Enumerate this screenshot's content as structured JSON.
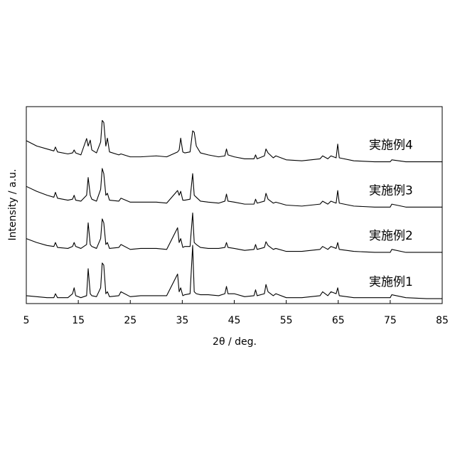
{
  "chart_data": {
    "type": "line",
    "x_label": "2θ / deg.",
    "y_label": "Intensity / a.u.",
    "x": [
      5,
      7,
      9,
      10.3,
      10.6,
      11,
      13,
      13.9,
      14.2,
      14.5,
      15.5,
      16.6,
      16.9,
      17.3,
      17.6,
      18.5,
      19.3,
      19.6,
      19.9,
      20.3,
      20.6,
      21,
      22.8,
      23.2,
      25,
      27,
      30,
      32,
      34.1,
      34.4,
      34.7,
      35.1,
      35.5,
      36.5,
      37.0,
      37.3,
      37.7,
      38.5,
      40,
      42,
      43.2,
      43.5,
      43.8,
      45,
      47,
      48.8,
      49.1,
      49.4,
      50.8,
      51.1,
      51.5,
      52.5,
      53,
      55,
      58,
      61.5,
      62,
      63,
      63.6,
      64.6,
      64.9,
      65.2,
      68,
      72,
      75,
      75.3,
      78,
      82,
      85
    ],
    "series": [
      {
        "name": "実施例1",
        "color": "#000000",
        "values": [
          4,
          3.5,
          3,
          3,
          5,
          3,
          3,
          5,
          8,
          4,
          3,
          4,
          17.7,
          5,
          4,
          3.5,
          8,
          20.6,
          19.5,
          5,
          6,
          3.5,
          4,
          6,
          3.5,
          4,
          4,
          4,
          15,
          6,
          8,
          4,
          4.5,
          5,
          29.6,
          6,
          5,
          4.5,
          4.5,
          4,
          5,
          8.7,
          5,
          5,
          3.5,
          4,
          7,
          4,
          5,
          9.7,
          6,
          4,
          5,
          3,
          3,
          4,
          6,
          4,
          6,
          5,
          8,
          4,
          3,
          3,
          3,
          4.5,
          3,
          2.5,
          2.5
        ]
      },
      {
        "name": "実施例2",
        "color": "#000000",
        "values": [
          33,
          31,
          29.5,
          29,
          31,
          28.5,
          28,
          29,
          31,
          29,
          28,
          30,
          41,
          30,
          29,
          28,
          33,
          43,
          41,
          30,
          31,
          28,
          28.5,
          30,
          27.5,
          28,
          28,
          27.5,
          38.5,
          31,
          33,
          28.5,
          29,
          29,
          46,
          31,
          30,
          28.5,
          28,
          28,
          28.5,
          31,
          28.5,
          28,
          27,
          27.5,
          30,
          27.5,
          28.5,
          31.4,
          29.5,
          27.5,
          28,
          26.5,
          26.5,
          27.5,
          29,
          27.5,
          29,
          28,
          31,
          27.5,
          26.5,
          26,
          26,
          27.5,
          26,
          26,
          26
        ]
      },
      {
        "name": "実施例3",
        "color": "#000000",
        "values": [
          59.5,
          57,
          55,
          54,
          56.5,
          53.5,
          52.5,
          53,
          55,
          52.5,
          52,
          55,
          64,
          55,
          53,
          52,
          58,
          68.6,
          66,
          55,
          56,
          52.5,
          52,
          53.5,
          51.5,
          51.5,
          51.5,
          51,
          57.4,
          55,
          57,
          52.5,
          52.5,
          53,
          66,
          55,
          54,
          52,
          51.5,
          51,
          52,
          55.6,
          52,
          51.5,
          50.5,
          50.5,
          53,
          51,
          52,
          56,
          53,
          51,
          51.5,
          50,
          49.5,
          50.5,
          52,
          50.5,
          52,
          51,
          57.4,
          51,
          49.5,
          49,
          49,
          50.5,
          49,
          49,
          49
        ]
      },
      {
        "name": "実施例4",
        "color": "#000000",
        "values": [
          82.7,
          80,
          78.5,
          77.5,
          79.5,
          77,
          76,
          76.5,
          78,
          76.5,
          75.5,
          83.8,
          80,
          83,
          78,
          76.5,
          82,
          93,
          92,
          80,
          84,
          77,
          75.5,
          76,
          74.5,
          74.5,
          75,
          74.5,
          77,
          78,
          84,
          77,
          76.5,
          77,
          87.7,
          87,
          80,
          76.5,
          75.5,
          74.5,
          75,
          78.5,
          75.5,
          74.5,
          73.5,
          73.5,
          75.5,
          73.5,
          75,
          78.5,
          76.5,
          74,
          75,
          73,
          72.5,
          73.5,
          75,
          73.5,
          75,
          74,
          81,
          74,
          72.5,
          72,
          72,
          73,
          72,
          72,
          72
        ]
      }
    ],
    "xlim": [
      5,
      85
    ],
    "xticks": [
      5,
      15,
      25,
      35,
      45,
      55,
      65,
      75,
      85
    ],
    "ylim": [
      0,
      100
    ]
  }
}
